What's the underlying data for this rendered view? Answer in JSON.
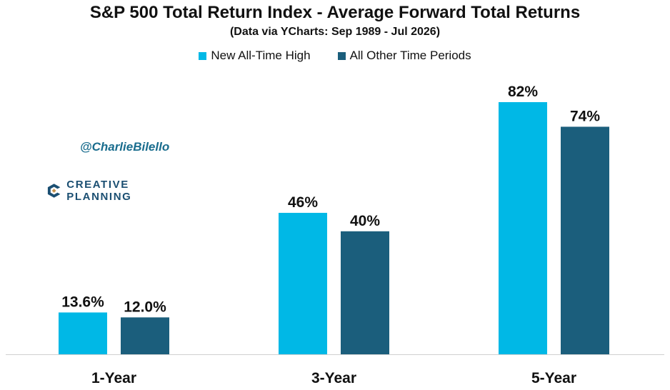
{
  "title": "S&P 500 Total Return Index - Average Forward Total Returns",
  "subtitle": "(Data via YCharts: Sep 1989 - Jul 2026)",
  "handle": "@CharlieBilello",
  "logo_text": "CREATIVE PLANNING",
  "colors": {
    "series1": "#00b8e6",
    "series2": "#1b5e7c"
  },
  "chart_data": {
    "type": "bar",
    "categories": [
      "1-Year",
      "3-Year",
      "5-Year"
    ],
    "series": [
      {
        "name": "New All-Time High",
        "values": [
          13.6,
          46,
          82
        ],
        "labels": [
          "13.6%",
          "46%",
          "82%"
        ]
      },
      {
        "name": "All Other Time Periods",
        "values": [
          12.0,
          40,
          74
        ],
        "labels": [
          "12.0%",
          "40%",
          "74%"
        ]
      }
    ],
    "title": "S&P 500 Total Return Index - Average Forward Total Returns",
    "subtitle": "(Data via YCharts: Sep 1989 - Jul 2026)",
    "xlabel": "",
    "ylabel": "",
    "ylim": [
      0,
      100
    ],
    "legend": "top",
    "grid": false
  }
}
